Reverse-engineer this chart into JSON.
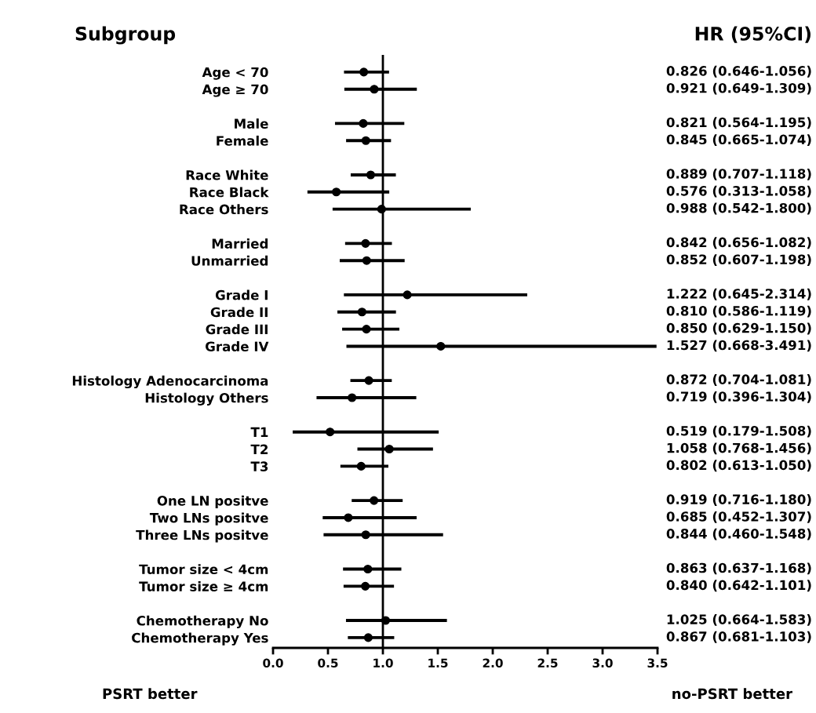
{
  "chart_data": {
    "type": "scatter",
    "orientation": "horizontal",
    "ylabel": "Subgroup",
    "categories": [
      "Age < 70",
      "Age ≥ 70",
      null,
      "Male",
      "Female",
      null,
      "Race White",
      "Race Black",
      "Race Others",
      null,
      "Married",
      "Unmarried",
      null,
      "Grade I",
      "Grade II",
      "Grade III",
      "Grade IV",
      null,
      "Histology Adenocarcinoma",
      "Histology Others",
      null,
      "T1",
      "T2",
      "T3",
      null,
      "One LN positve",
      "Two LNs positve",
      "Three LNs positve",
      null,
      "Tumor size < 4cm",
      "Tumor size ≥ 4cm",
      null,
      "Chemotherapy No",
      "Chemotherapy Yes"
    ],
    "color": "#000000",
    "values": [
      0.826,
      0.921,
      null,
      0.821,
      0.845,
      null,
      0.889,
      0.576,
      0.988,
      null,
      0.842,
      0.852,
      null,
      1.222,
      0.81,
      0.85,
      1.527,
      null,
      0.872,
      0.719,
      null,
      0.519,
      1.058,
      0.802,
      null,
      0.919,
      0.685,
      0.844,
      null,
      0.863,
      0.84,
      null,
      1.025,
      0.867
    ],
    "errors": [
      [
        0.646,
        1.056
      ],
      [
        0.649,
        1.309
      ],
      null,
      [
        0.564,
        1.195
      ],
      [
        0.665,
        1.074
      ],
      null,
      [
        0.707,
        1.118
      ],
      [
        0.313,
        1.058
      ],
      [
        0.542,
        1.8
      ],
      null,
      [
        0.656,
        1.082
      ],
      [
        0.607,
        1.198
      ],
      null,
      [
        0.645,
        2.314
      ],
      [
        0.586,
        1.119
      ],
      [
        0.629,
        1.15
      ],
      [
        0.668,
        3.491
      ],
      null,
      [
        0.704,
        1.081
      ],
      [
        0.396,
        1.304
      ],
      null,
      [
        0.179,
        1.508
      ],
      [
        0.768,
        1.456
      ],
      [
        0.613,
        1.05
      ],
      null,
      [
        0.716,
        1.18
      ],
      [
        0.452,
        1.307
      ],
      [
        0.46,
        1.548
      ],
      null,
      [
        0.637,
        1.168
      ],
      [
        0.642,
        1.101
      ],
      null,
      [
        0.664,
        1.583
      ],
      [
        0.681,
        1.103
      ]
    ],
    "value_labels": [
      "0.826 (0.646-1.056)",
      "0.921 (0.649-1.309)",
      null,
      "0.821 (0.564-1.195)",
      "0.845 (0.665-1.074)",
      null,
      "0.889 (0.707-1.118)",
      "0.576 (0.313-1.058)",
      "0.988 (0.542-1.800)",
      null,
      "0.842 (0.656-1.082)",
      "0.852 (0.607-1.198)",
      null,
      "1.222 (0.645-2.314)",
      "0.810 (0.586-1.119)",
      "0.850 (0.629-1.150)",
      "1.527 (0.668-3.491)",
      null,
      "0.872 (0.704-1.081)",
      "0.719 (0.396-1.304)",
      null,
      "0.519 (0.179-1.508)",
      "1.058 (0.768-1.456)",
      "0.802 (0.613-1.050)",
      null,
      "0.919 (0.716-1.180)",
      "0.685 (0.452-1.307)",
      "0.844 (0.460-1.548)",
      null,
      "0.863 (0.637-1.168)",
      "0.840 (0.642-1.101)",
      null,
      "1.025 (0.664-1.583)",
      "0.867 (0.681-1.103)"
    ],
    "marker": "circle",
    "xlim": [
      0,
      3.5
    ],
    "xticks": [
      {
        "value": 0,
        "label": "0.0"
      },
      {
        "value": 0.5,
        "label": "0.5"
      },
      {
        "value": 1,
        "label": "1.0"
      },
      {
        "value": 1.5,
        "label": "1.5"
      },
      {
        "value": 2,
        "label": "2.0"
      },
      {
        "value": 2.5,
        "label": "2.5"
      },
      {
        "value": 3,
        "label": "3.0"
      },
      {
        "value": 3.5,
        "label": "3.5"
      }
    ],
    "ref_lines": [
      {
        "axis": "x",
        "value": 1,
        "color": "#000000"
      }
    ],
    "annotations": [
      "HR (95%CI)",
      "PSRT better",
      "no-PSRT better"
    ],
    "grid": false,
    "legend": false
  }
}
